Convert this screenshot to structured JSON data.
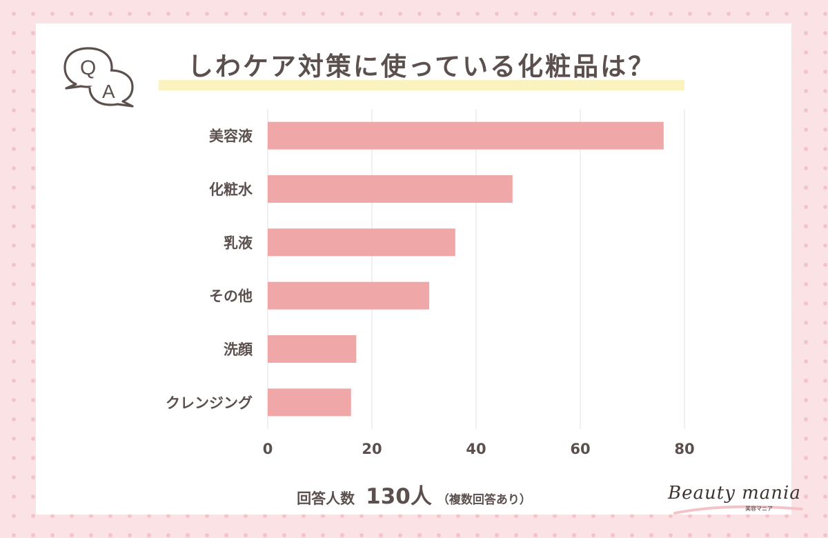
{
  "header": {
    "title": "しわケア対策に使っている化粧品は？",
    "icon_q": "Q",
    "icon_a": "A"
  },
  "chart_data": {
    "type": "bar",
    "orientation": "horizontal",
    "title": "しわケア対策に使っている化粧品は？",
    "categories": [
      "美容液",
      "化粧水",
      "乳液",
      "その他",
      "洗顔",
      "クレンジング"
    ],
    "values": [
      76,
      47,
      36,
      31,
      17,
      16
    ],
    "xlim": [
      0,
      80
    ],
    "xticks": [
      0,
      20,
      40,
      60,
      80
    ],
    "grid": true,
    "xlabel": "",
    "ylabel": ""
  },
  "footer": {
    "label": "回答人数",
    "count": "130人",
    "note": "（複数回答あり）"
  },
  "logo": {
    "name": "Beauty mania",
    "sub": "美容マニア"
  },
  "colors": {
    "bar": "#f0a7a7",
    "text": "#5b504d",
    "highlight": "#fbf3bf",
    "background": "#fbe3e5",
    "dots": "#f3c3c8"
  }
}
